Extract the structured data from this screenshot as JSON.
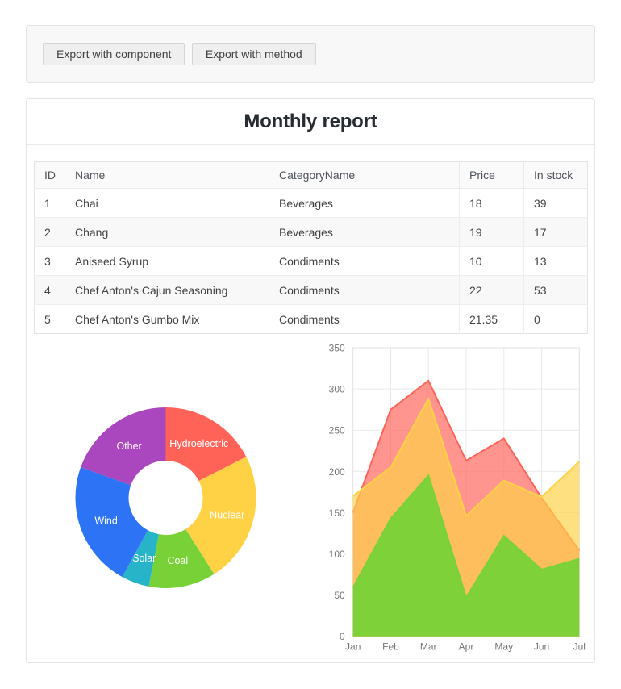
{
  "toolbar": {
    "export_component_label": "Export with component",
    "export_method_label": "Export with method"
  },
  "report": {
    "title": "Monthly report",
    "table": {
      "columns": [
        "ID",
        "Name",
        "CategoryName",
        "Price",
        "In stock"
      ],
      "rows": [
        [
          "1",
          "Chai",
          "Beverages",
          "18",
          "39"
        ],
        [
          "2",
          "Chang",
          "Beverages",
          "19",
          "17"
        ],
        [
          "3",
          "Aniseed Syrup",
          "Condiments",
          "10",
          "13"
        ],
        [
          "4",
          "Chef Anton's Cajun Seasoning",
          "Condiments",
          "22",
          "53"
        ],
        [
          "5",
          "Chef Anton's Gumbo Mix",
          "Condiments",
          "21.35",
          "0"
        ]
      ]
    }
  },
  "chart_data": [
    {
      "type": "pie",
      "donut": true,
      "legend": "none",
      "labels_inside": true,
      "label_color": "#ffffff",
      "slices": [
        {
          "label": "Hydroelectric",
          "value": 17.5,
          "color": "#ff6358"
        },
        {
          "label": "Nuclear",
          "value": 23.5,
          "color": "#ffd246"
        },
        {
          "label": "Coal",
          "value": 12.0,
          "color": "#78d237"
        },
        {
          "label": "Solar",
          "value": 5.0,
          "color": "#28b4c8"
        },
        {
          "label": "Wind",
          "value": 22.5,
          "color": "#2d73f5"
        },
        {
          "label": "Other",
          "value": 19.5,
          "color": "#aa46be"
        }
      ]
    },
    {
      "type": "area",
      "categories": [
        "Jan",
        "Feb",
        "Mar",
        "Apr",
        "May",
        "Jun",
        "Jul"
      ],
      "series": [
        {
          "name": "red",
          "color": "#ff6358",
          "opacity": 0.68,
          "values": [
            150,
            275,
            310,
            213,
            240,
            168,
            104
          ]
        },
        {
          "name": "yellow",
          "color": "#ffd246",
          "opacity": 0.68,
          "values": [
            170,
            205,
            288,
            146,
            189,
            169,
            212
          ]
        },
        {
          "name": "green",
          "color": "#78d237",
          "opacity": 0.95,
          "values": [
            59,
            143,
            195,
            47,
            122,
            81,
            94
          ]
        }
      ],
      "ylim": [
        0,
        350
      ],
      "ytick_step": 50,
      "grid": true,
      "legend": "none",
      "axis_label_color": "#757575",
      "gridline_color": "#e9e9e9"
    }
  ]
}
